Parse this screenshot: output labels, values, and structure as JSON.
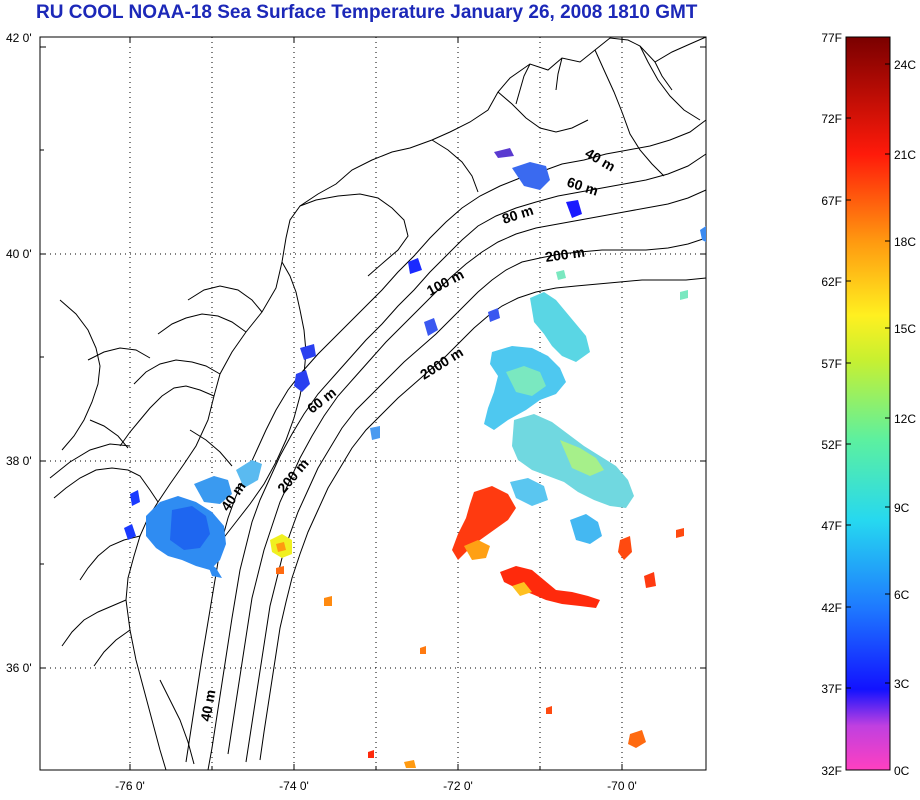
{
  "title": "RU COOL  NOAA-18 Sea Surface Temperature January 26, 2008 1810 GMT",
  "map": {
    "lat_labels": [
      "42 0'",
      "40 0'",
      "38 0'",
      "36 0'"
    ],
    "lon_labels": [
      "-76 0'",
      "-74 0'",
      "-72 0'",
      "-70 0'"
    ],
    "depth_labels": [
      "40 m",
      "60 m",
      "80 m",
      "200 m",
      "100 m",
      "2000 m",
      "60 m",
      "40 m",
      "200 m",
      "40 m"
    ]
  },
  "colorbar": {
    "fahrenheit_labels": [
      "77F",
      "72F",
      "67F",
      "62F",
      "57F",
      "52F",
      "47F",
      "42F",
      "37F",
      "32F"
    ],
    "celsius_labels": [
      "24C",
      "21C",
      "18C",
      "15C",
      "12C",
      "9C",
      "6C",
      "3C",
      "0C"
    ],
    "colors": [
      "#ff40c0",
      "#8a2fd0",
      "#1212ff",
      "#1e78ff",
      "#26d8f0",
      "#5cf0a0",
      "#e8f020",
      "#ff9a10",
      "#ff1a0a",
      "#7a0000"
    ]
  }
}
